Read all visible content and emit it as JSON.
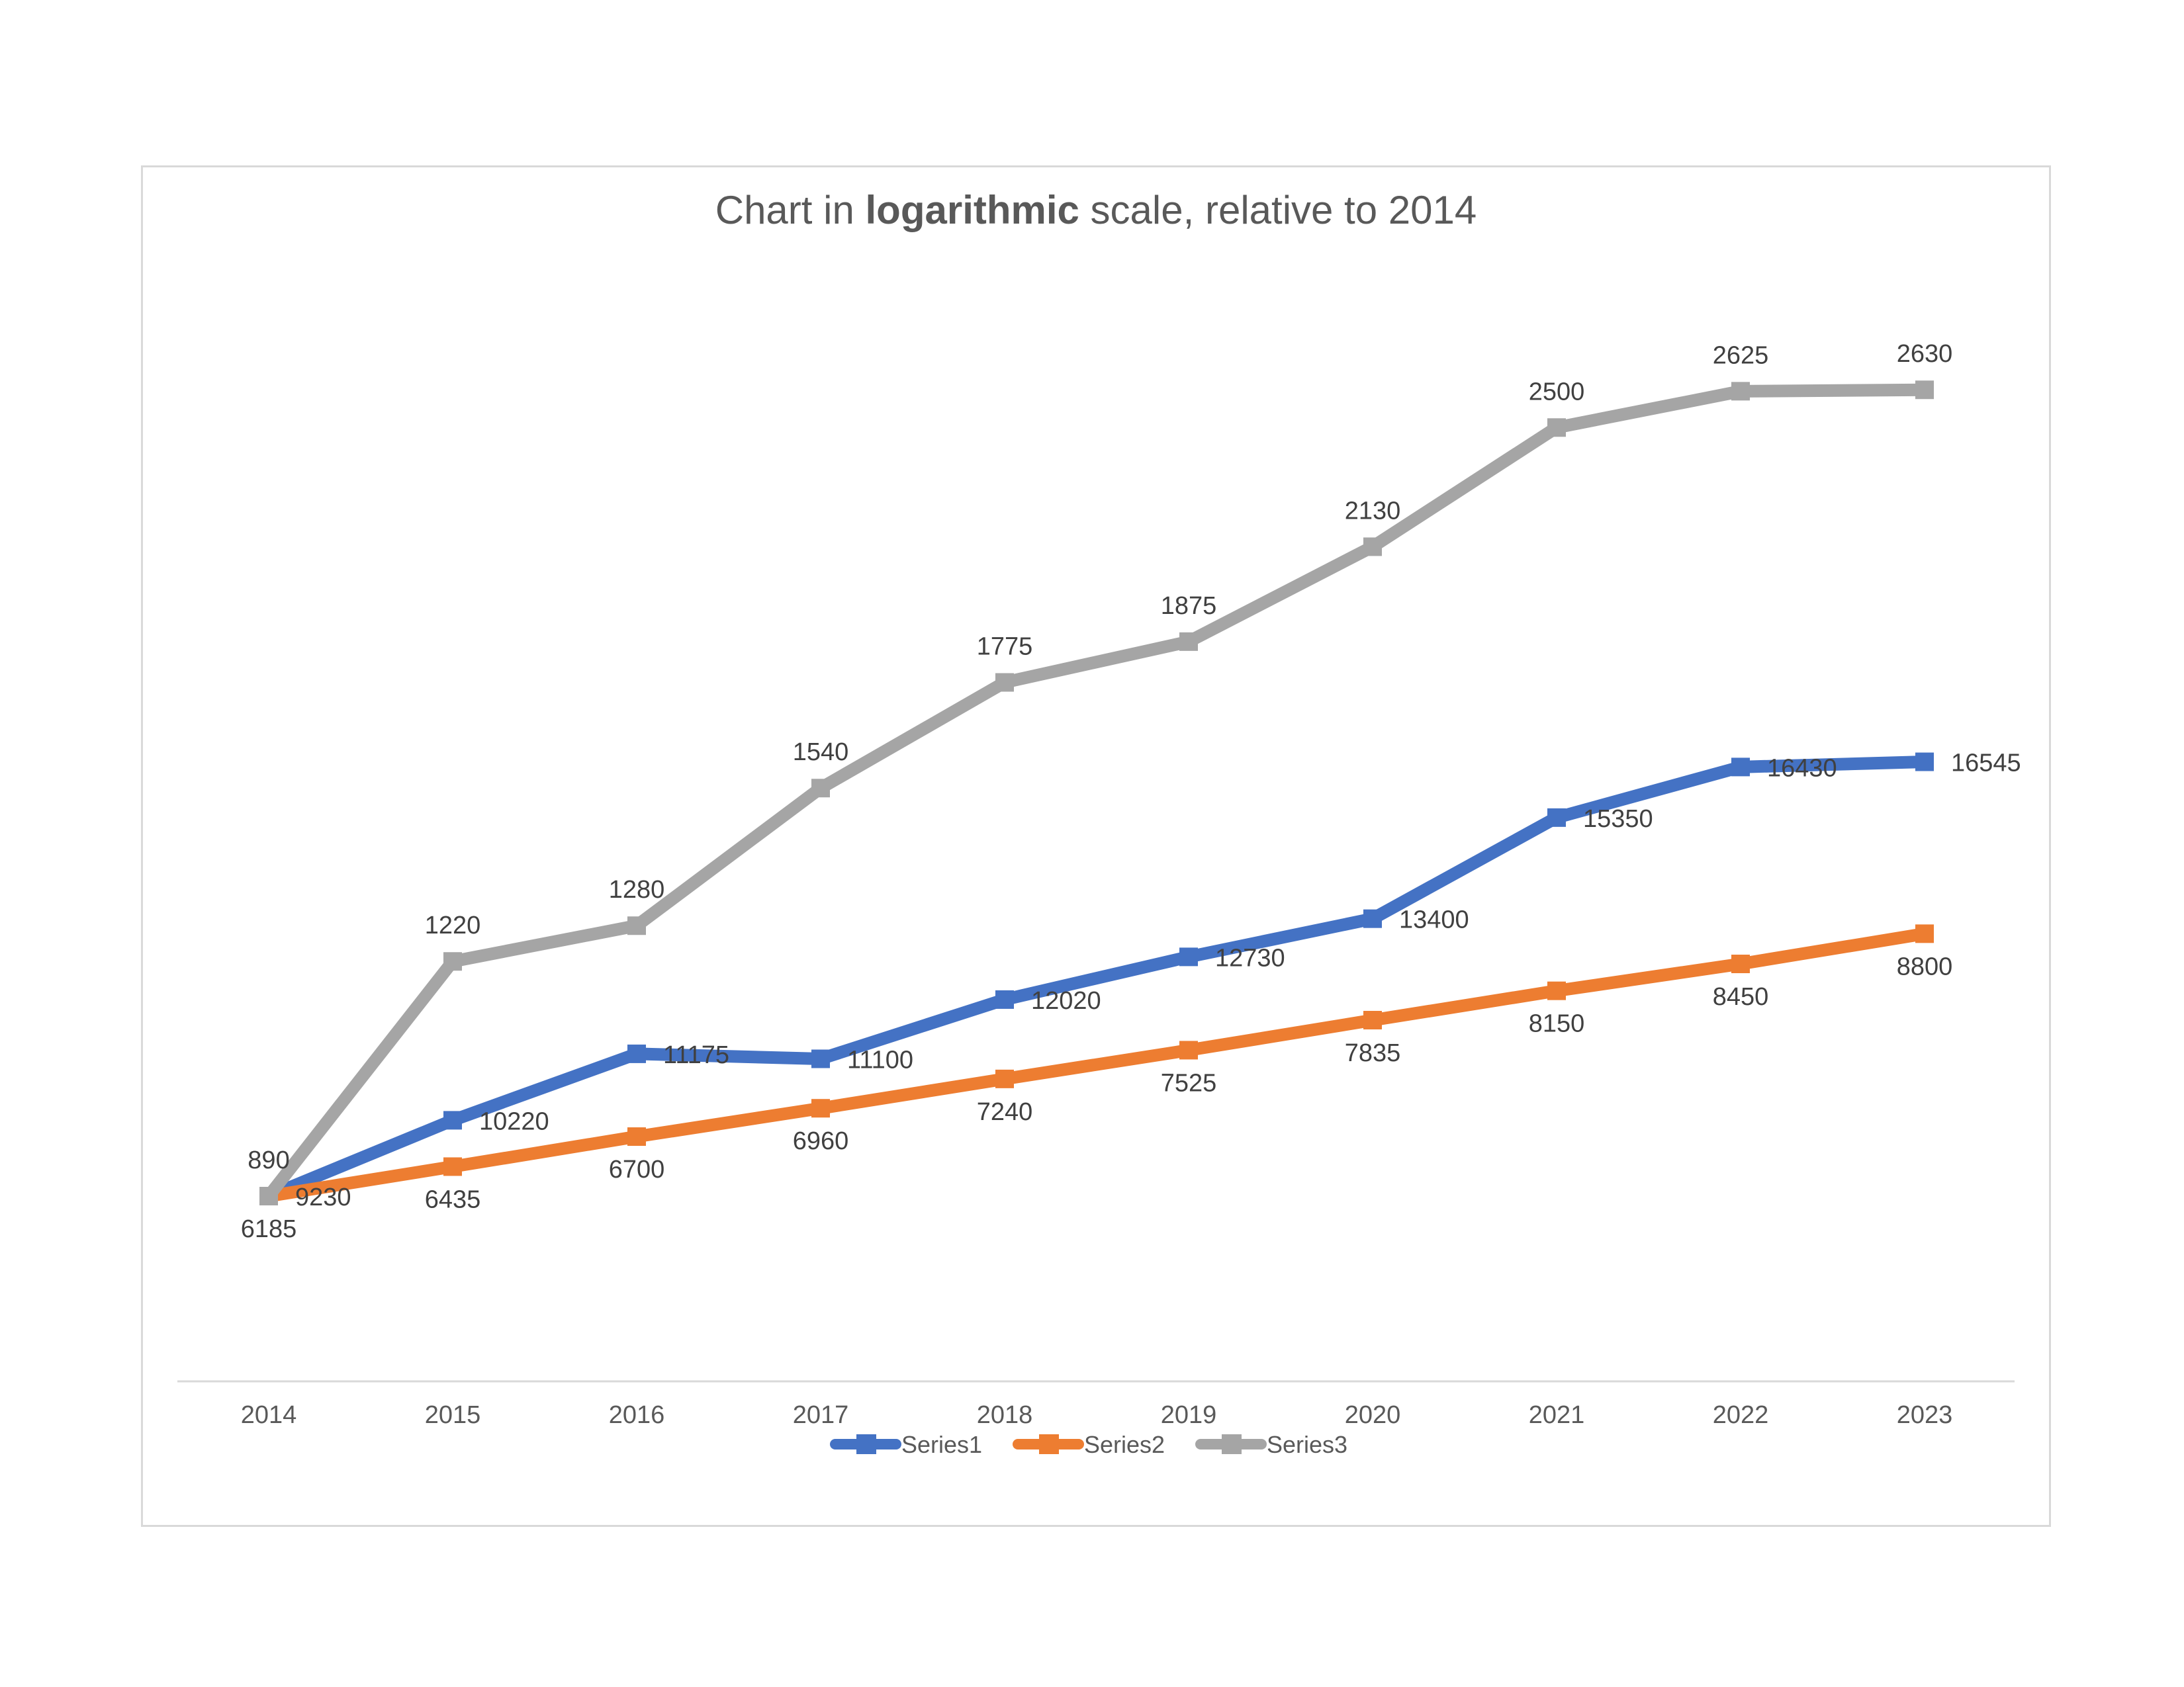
{
  "chart_data": {
    "type": "line",
    "title": "Chart in logarithmic scale, relative to 2014",
    "title_parts": [
      {
        "text": "Chart in ",
        "bold": false
      },
      {
        "text": "logarithmic",
        "bold": true
      },
      {
        "text": " scale, relative to 2014",
        "bold": false
      }
    ],
    "y_scale": "log, relative to 2014",
    "categories": [
      "2014",
      "2015",
      "2016",
      "2017",
      "2018",
      "2019",
      "2020",
      "2021",
      "2022",
      "2023"
    ],
    "series": [
      {
        "name": "Series1",
        "color": "#4472C4",
        "values": [
          9230,
          10220,
          11175,
          11100,
          12020,
          12730,
          13400,
          15350,
          16430,
          16545
        ]
      },
      {
        "name": "Series2",
        "color": "#ED7D31",
        "values": [
          6185,
          6435,
          6700,
          6960,
          7240,
          7525,
          7835,
          8150,
          8450,
          8800
        ]
      },
      {
        "name": "Series3",
        "color": "#A5A5A5",
        "values": [
          890,
          1220,
          1280,
          1540,
          1775,
          1875,
          2130,
          2500,
          2625,
          2630
        ]
      }
    ],
    "grid": false,
    "legend": "bottom"
  }
}
